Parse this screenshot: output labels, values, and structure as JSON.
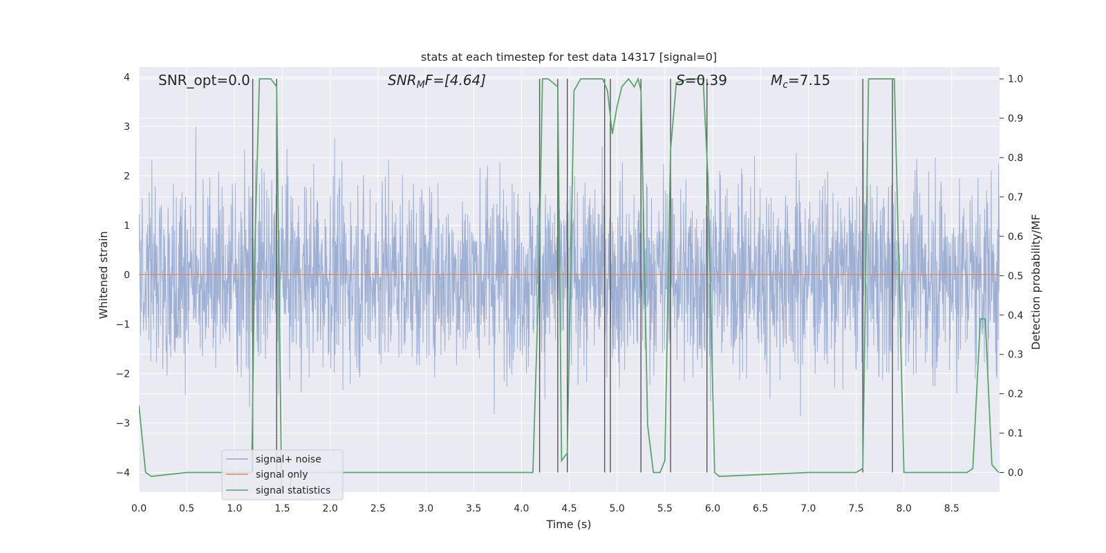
{
  "chart_data": {
    "type": "line",
    "title": "stats at each timestep for test data 14317 [signal=0]",
    "xlabel": "Time (s)",
    "ylabel": "Whitened strain",
    "y2label": "Detection probability/MF",
    "xlim": [
      0,
      9.0
    ],
    "ylim": [
      -4.4,
      4.2
    ],
    "y2lim": [
      -0.05,
      1.03
    ],
    "x_ticks": [
      "0.0",
      "0.5",
      "1.0",
      "1.5",
      "2.0",
      "2.5",
      "3.0",
      "3.5",
      "4.0",
      "4.5",
      "5.0",
      "5.5",
      "6.0",
      "6.5",
      "7.0",
      "7.5",
      "8.0",
      "8.5"
    ],
    "y_ticks": [
      "4",
      "3",
      "2",
      "1",
      "0",
      "−1",
      "−2",
      "−3",
      "−4"
    ],
    "y2_ticks": [
      "1.0",
      "0.9",
      "0.8",
      "0.7",
      "0.6",
      "0.5",
      "0.4",
      "0.3",
      "0.2",
      "0.1",
      "0.0"
    ],
    "grid": true,
    "legend_position": "lower-left",
    "annotations": {
      "snr_opt": "SNR_opt=0.0",
      "snr_mf_name": "SNR",
      "snr_mf_sub": "M",
      "snr_mf_rest": "F=[4.64]",
      "s_name": "S",
      "s_value": "=0.39",
      "mc_name": "M",
      "mc_sub": "c",
      "mc_value": "=7.15"
    },
    "series": [
      {
        "name": "signal+ noise",
        "color": "#8fa6cf",
        "noise_envelope": [
          -4.0,
          3.3
        ],
        "note_kind": "noise"
      },
      {
        "name": "signal only",
        "color": "#dd8452",
        "values_constant": 0.0
      },
      {
        "name": "signal statistics",
        "color": "#55a868",
        "axis": "right",
        "x": [
          0.0,
          0.07,
          0.13,
          0.5,
          1.0,
          1.18,
          1.21,
          1.26,
          1.3,
          1.38,
          1.44,
          1.5,
          1.6,
          2.0,
          3.0,
          4.0,
          4.12,
          4.18,
          4.22,
          4.28,
          4.38,
          4.42,
          4.48,
          4.55,
          4.62,
          4.85,
          4.9,
          4.95,
          5.0,
          5.05,
          5.12,
          5.18,
          5.22,
          5.25,
          5.32,
          5.38,
          5.45,
          5.5,
          5.56,
          5.62,
          5.75,
          5.9,
          5.95,
          6.02,
          6.07,
          7.0,
          7.5,
          7.57,
          7.63,
          7.9,
          8.0,
          8.5,
          8.66,
          8.72,
          8.8,
          8.85,
          8.92,
          8.99
        ],
        "values": [
          0.17,
          0.0,
          -0.01,
          0.0,
          0.0,
          0.0,
          0.55,
          1.0,
          1.0,
          1.0,
          0.98,
          -0.2,
          0.0,
          0.0,
          0.0,
          0.0,
          0.0,
          0.48,
          1.0,
          1.0,
          0.98,
          0.03,
          0.05,
          0.97,
          1.0,
          1.0,
          0.97,
          0.86,
          0.93,
          0.98,
          1.0,
          0.98,
          1.0,
          0.97,
          0.12,
          0.0,
          0.0,
          0.03,
          0.82,
          0.99,
          1.0,
          1.0,
          0.75,
          0.0,
          -0.01,
          0.0,
          0.0,
          0.01,
          1.0,
          1.0,
          0.0,
          0.0,
          0.0,
          0.01,
          0.39,
          0.39,
          0.02,
          0.0
        ]
      },
      {
        "name": "detection markers",
        "color": "#555555",
        "x": [
          1.19,
          1.44,
          4.19,
          4.38,
          4.48,
          4.87,
          4.93,
          5.25,
          5.56,
          5.94,
          7.57,
          7.88
        ]
      }
    ]
  }
}
